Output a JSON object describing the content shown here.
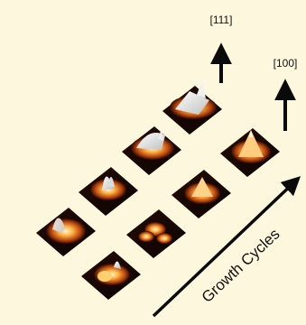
{
  "colors": {
    "background": "#fdf7de",
    "tile_dark": "#160704",
    "tile_mid": "#b4430d",
    "tile_hot": "#ff9f36",
    "tile_light": "#fff8d8",
    "tile_white": "#f2f2f2",
    "arrow": "#0a0a0a"
  },
  "labels": {
    "dir_111": "[111]",
    "dir_100": "[100]",
    "growth_cycles": "Growth Cycles"
  },
  "series": {
    "row_111": {
      "tiles": [
        {
          "motif": "single-peak"
        },
        {
          "motif": "spiky-mound"
        },
        {
          "motif": "wide-ridge"
        },
        {
          "motif": "flattop-pillar"
        }
      ]
    },
    "row_100": {
      "tiles": [
        {
          "motif": "twin-lobes"
        },
        {
          "motif": "multi-lobes"
        },
        {
          "motif": "square-pyramid"
        },
        {
          "motif": "tall-pyramid"
        }
      ]
    }
  }
}
